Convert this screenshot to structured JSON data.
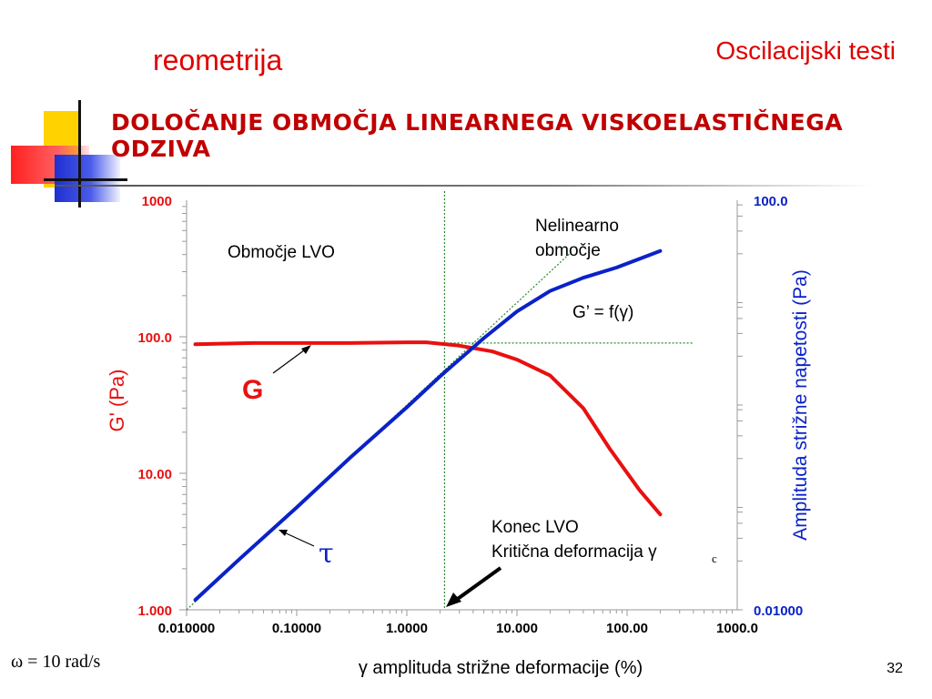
{
  "slide": {
    "title_left": "reometrija",
    "title_right": "Oscilacijski testi",
    "heading": "DOLOČANJE OBMOČJA LINEARNEGA VISKOELASTIČNEGA ODZIVA",
    "omega_note": "ω = 10 rad/s",
    "page_number": "32"
  },
  "colors": {
    "title": "#e00000",
    "g_curve": "#e81010",
    "tau_curve": "#0a22c8",
    "guide": "#2a8a2a"
  },
  "chart_data": {
    "type": "line",
    "xlabel": "γ amplituda strižne deformacije (%)",
    "ylabel_left": "G' (Pa)",
    "ylabel_right": "Amplituda strižne napetosti (Pa)",
    "x_scale": "log",
    "y_left_scale": "log",
    "y_right_scale": "log",
    "xlim": [
      0.01,
      1000
    ],
    "ylim_left": [
      1,
      1000
    ],
    "ylim_right": [
      0.01,
      100
    ],
    "x_ticks": [
      "0.010000",
      "0.10000",
      "1.0000",
      "10.000",
      "100.00",
      "1000.0"
    ],
    "y_left_ticks": [
      "1.000",
      "10.00",
      "100.0",
      "1000"
    ],
    "y_right_ticks": [
      "0.01000",
      "100.0"
    ],
    "series": [
      {
        "name": "G",
        "axis": "left",
        "x": [
          0.012,
          0.02,
          0.04,
          0.1,
          0.3,
          1,
          1.5,
          3,
          6,
          10,
          20,
          40,
          70,
          130,
          200
        ],
        "y": [
          88,
          89,
          90,
          90,
          90,
          91,
          91,
          86,
          78,
          68,
          52,
          30,
          15,
          7.5,
          5
        ]
      },
      {
        "name": "τ",
        "axis": "right",
        "x": [
          0.012,
          0.03,
          0.1,
          0.3,
          1,
          2,
          5,
          10,
          20,
          40,
          80,
          200
        ],
        "y": [
          0.0125,
          0.031,
          0.1,
          0.3,
          0.95,
          1.9,
          4.5,
          8.2,
          13,
          17.5,
          22,
          32
        ]
      }
    ],
    "guides": [
      {
        "type": "vertical",
        "x": 2.2
      },
      {
        "type": "horizontal",
        "axis": "left",
        "y": 90
      },
      {
        "type": "diagonal",
        "axis": "right",
        "x": [
          0.01,
          30
        ],
        "y": [
          0.01,
          30
        ]
      }
    ],
    "annotations": [
      {
        "id": "lvo",
        "text": "Območje LVO"
      },
      {
        "id": "nonlinear_1",
        "text": "Nelinearno"
      },
      {
        "id": "nonlinear_2",
        "text": "območje"
      },
      {
        "id": "gf",
        "text": "G’ = f(γ)"
      },
      {
        "id": "g_label",
        "text": "G"
      },
      {
        "id": "tau_label",
        "text": "τ"
      },
      {
        "id": "end_lvo_1",
        "text": "Konec LVO"
      },
      {
        "id": "end_lvo_2",
        "text": "Kritična deformacija γ"
      },
      {
        "id": "end_lvo_sub",
        "text": "c"
      }
    ]
  }
}
